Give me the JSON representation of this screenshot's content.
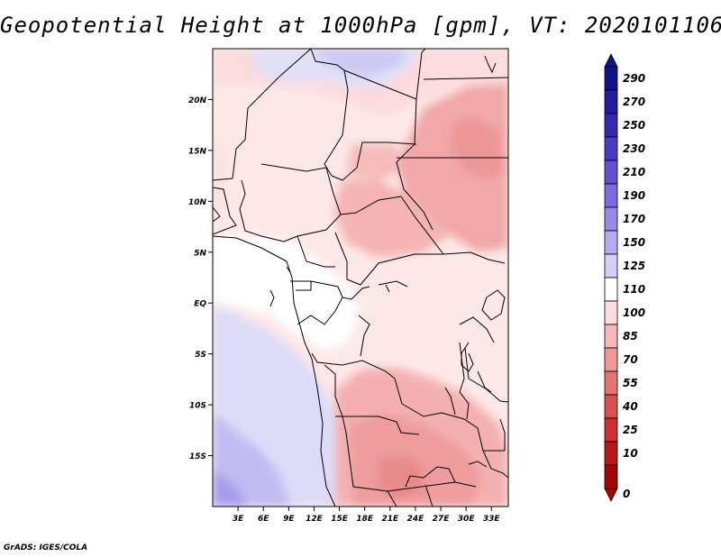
{
  "title": "Geopotential Height at 1000hPa [gpm], VT: 2020101106",
  "credit": "GrADS: IGES/COLA",
  "map": {
    "lat_range": [
      -20,
      25
    ],
    "lon_range": [
      0,
      35
    ],
    "lat_ticks": [
      {
        "value": 20,
        "label": "20N"
      },
      {
        "value": 15,
        "label": "15N"
      },
      {
        "value": 10,
        "label": "10N"
      },
      {
        "value": 5,
        "label": "5N"
      },
      {
        "value": 0,
        "label": "EQ"
      },
      {
        "value": -5,
        "label": "5S"
      },
      {
        "value": -10,
        "label": "10S"
      },
      {
        "value": -15,
        "label": "15S"
      }
    ],
    "lon_ticks": [
      {
        "value": 3,
        "label": "3E"
      },
      {
        "value": 6,
        "label": "6E"
      },
      {
        "value": 9,
        "label": "9E"
      },
      {
        "value": 12,
        "label": "12E"
      },
      {
        "value": 15,
        "label": "15E"
      },
      {
        "value": 18,
        "label": "18E"
      },
      {
        "value": 21,
        "label": "21E"
      },
      {
        "value": 24,
        "label": "24E"
      },
      {
        "value": 27,
        "label": "27E"
      },
      {
        "value": 30,
        "label": "30E"
      },
      {
        "value": 33,
        "label": "33E"
      }
    ]
  },
  "colorbar": {
    "labels": [
      "290",
      "270",
      "250",
      "230",
      "210",
      "190",
      "170",
      "150",
      "125",
      "110",
      "100",
      "85",
      "70",
      "55",
      "40",
      "25",
      "10",
      "0"
    ],
    "colors": [
      "#14128a",
      "#221c9e",
      "#3428b0",
      "#4a3cc2",
      "#6150d0",
      "#7a6ce0",
      "#968be8",
      "#b4acf0",
      "#d4d0f8",
      "#ffffff",
      "#fcdcdc",
      "#f6b8b8",
      "#ee9898",
      "#e47474",
      "#da5050",
      "#cc3030",
      "#b81818",
      "#a00808"
    ]
  }
}
